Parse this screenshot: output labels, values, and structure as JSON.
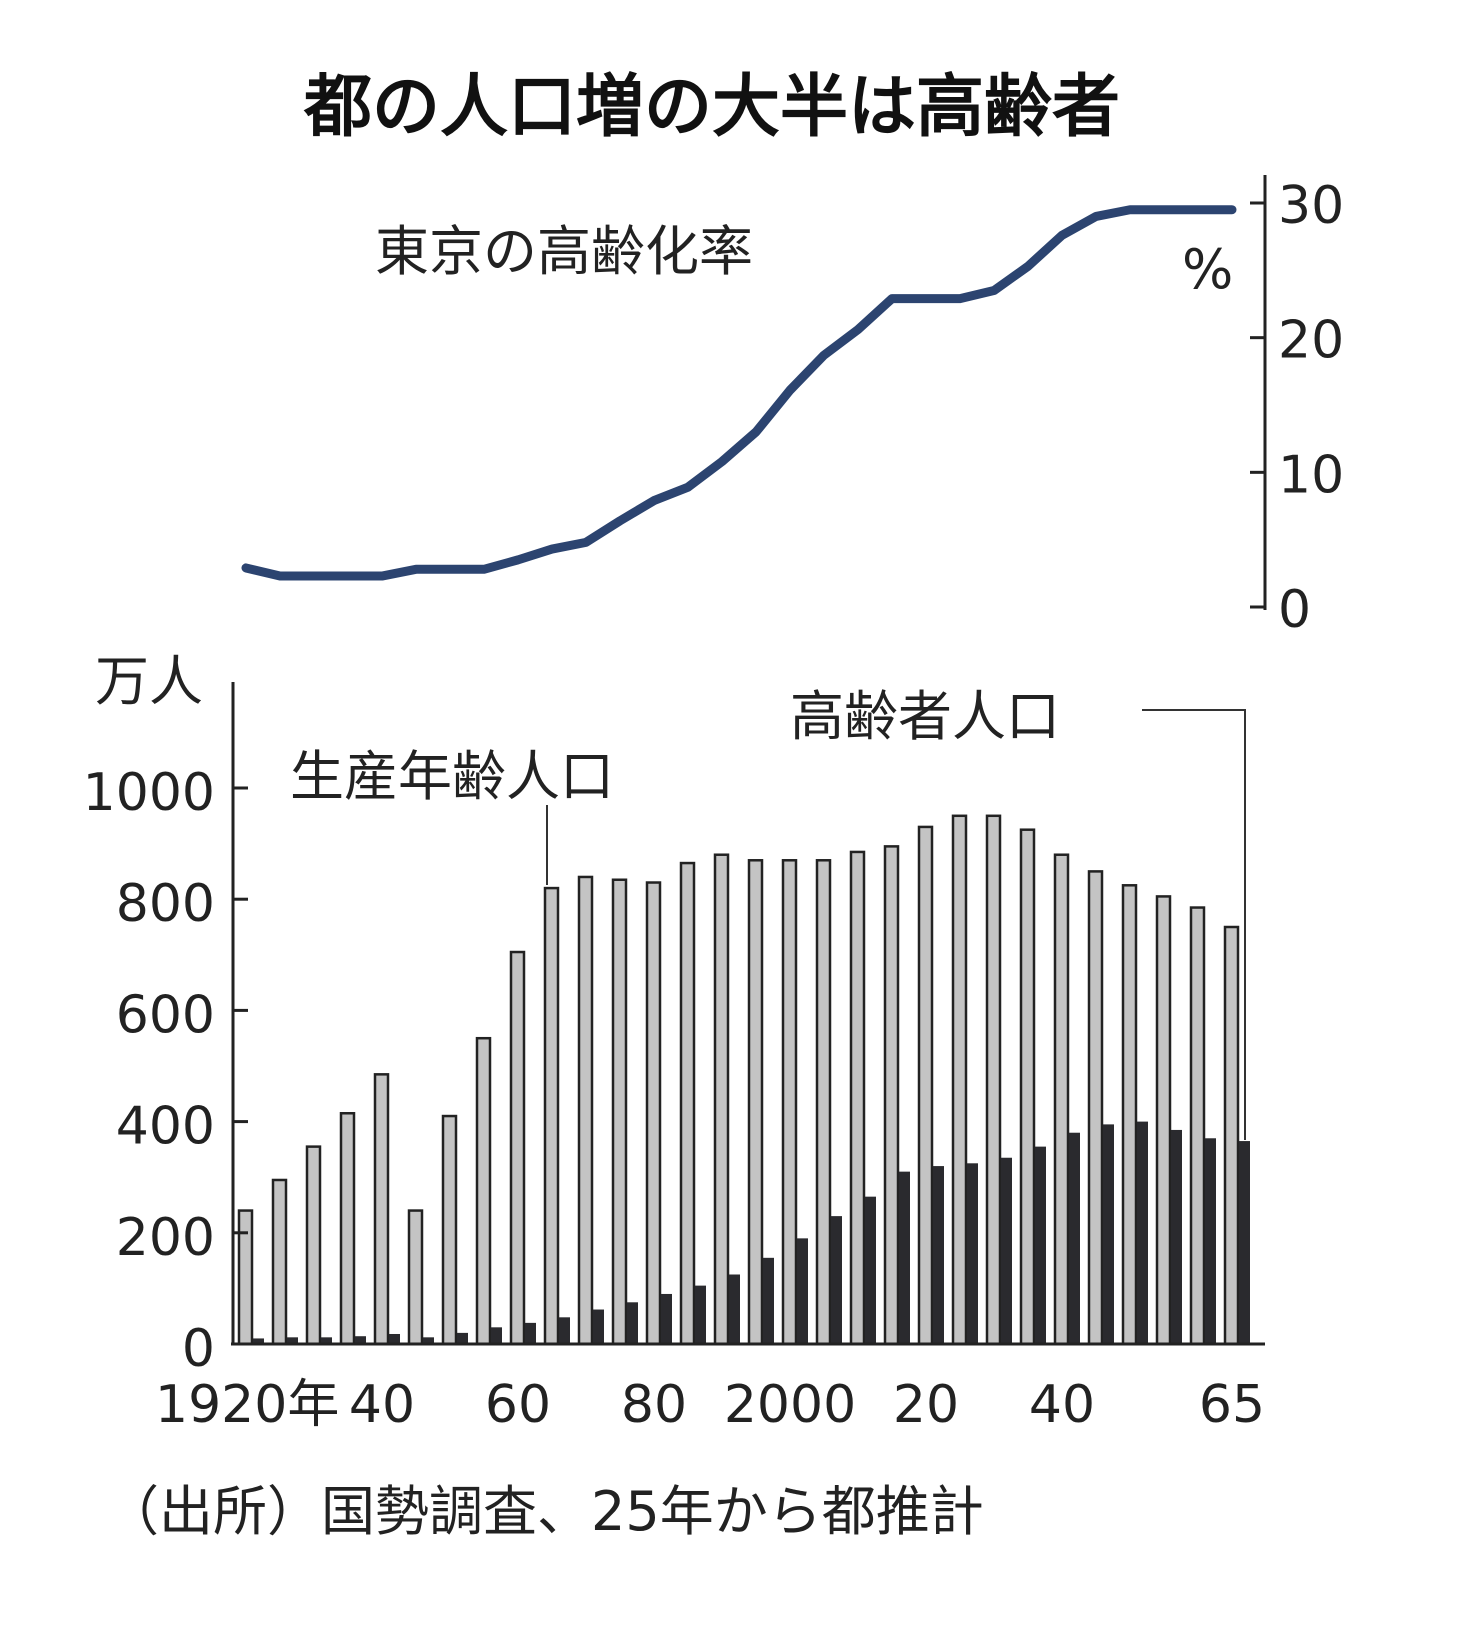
{
  "chart_data": [
    {
      "type": "line",
      "title": "都の人口増の大半は高齢者",
      "label": "東京の高齢化率",
      "unit": "%",
      "y_ticks": [
        "0",
        "10",
        "20",
        "30"
      ],
      "ylim": [
        0,
        30
      ],
      "x": [
        1920,
        1925,
        1930,
        1935,
        1940,
        1945,
        1950,
        1955,
        1960,
        1965,
        1970,
        1975,
        1980,
        1985,
        1990,
        1995,
        2000,
        2005,
        2010,
        2015,
        2020,
        2025,
        2030,
        2035,
        2040,
        2045,
        2050,
        2055,
        2060,
        2065
      ],
      "values": [
        2.9,
        2.3,
        2.3,
        2.3,
        2.3,
        2.8,
        2.8,
        2.8,
        3.5,
        4.3,
        4.8,
        6.4,
        7.9,
        8.9,
        10.8,
        13.0,
        16.1,
        18.7,
        20.6,
        22.9,
        22.9,
        22.9,
        23.5,
        25.3,
        27.6,
        29.0,
        29.5,
        29.5,
        29.5,
        29.5
      ],
      "color": "#2c4470"
    },
    {
      "type": "bar",
      "y_unit": "万人",
      "ylim": [
        0,
        1000
      ],
      "y_ticks": [
        "0",
        "200",
        "400",
        "600",
        "800",
        "1000"
      ],
      "x_ticks": [
        "1920年",
        "40",
        "60",
        "80",
        "2000",
        "20",
        "40",
        "65"
      ],
      "x_tick_years": [
        1920,
        1940,
        1960,
        1980,
        2000,
        2020,
        2040,
        2065
      ],
      "categories": [
        1920,
        1925,
        1930,
        1935,
        1940,
        1945,
        1950,
        1955,
        1960,
        1965,
        1970,
        1975,
        1980,
        1985,
        1990,
        1995,
        2000,
        2005,
        2010,
        2015,
        2020,
        2025,
        2030,
        2035,
        2040,
        2045,
        2050,
        2055,
        2060,
        2065
      ],
      "series": [
        {
          "name": "生産年齢人口",
          "color": "#c4c4c4",
          "values": [
            240,
            295,
            355,
            415,
            485,
            240,
            410,
            550,
            705,
            820,
            840,
            835,
            830,
            865,
            880,
            870,
            870,
            870,
            885,
            895,
            930,
            950,
            950,
            925,
            880,
            850,
            825,
            805,
            785,
            750
          ]
        },
        {
          "name": "高齢者人口",
          "color": "#2a2a2e",
          "values": [
            10,
            12,
            12,
            14,
            18,
            12,
            20,
            30,
            38,
            48,
            62,
            75,
            90,
            105,
            125,
            155,
            190,
            230,
            265,
            310,
            320,
            325,
            335,
            355,
            380,
            395,
            400,
            385,
            370,
            365
          ]
        }
      ],
      "source": "（出所）国勢調査、25年から都推計"
    }
  ]
}
